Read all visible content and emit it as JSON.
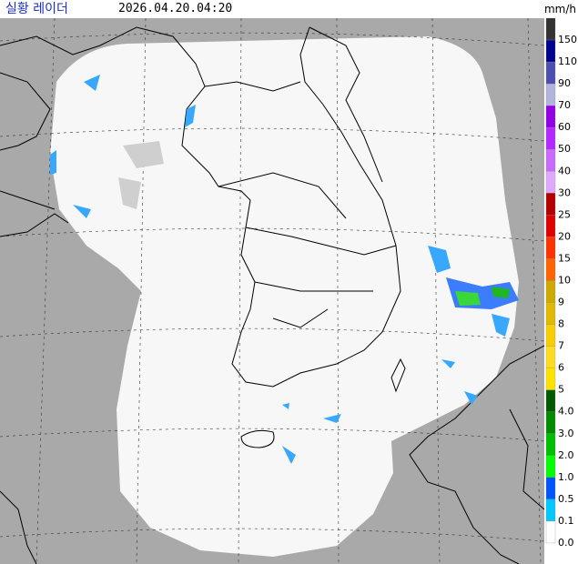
{
  "header": {
    "title": "실황 레이더",
    "time": "2026.04.20.04:20"
  },
  "legend": {
    "unit": "mm/h",
    "levels": [
      {
        "label": "150",
        "color": "#333333"
      },
      {
        "label": "110",
        "color": "#000390"
      },
      {
        "label": "90",
        "color": "#4c4eb1"
      },
      {
        "label": "70",
        "color": "#b3b4de"
      },
      {
        "label": "60",
        "color": "#9300e4"
      },
      {
        "label": "50",
        "color": "#b329ff"
      },
      {
        "label": "40",
        "color": "#c969ff"
      },
      {
        "label": "30",
        "color": "#e0a9ff"
      },
      {
        "label": "25",
        "color": "#b40000"
      },
      {
        "label": "20",
        "color": "#e00000"
      },
      {
        "label": "15",
        "color": "#ff3200"
      },
      {
        "label": "10",
        "color": "#ff6400"
      },
      {
        "label": "9",
        "color": "#ccaa00"
      },
      {
        "label": "8",
        "color": "#e0b900"
      },
      {
        "label": "7",
        "color": "#f9cd00"
      },
      {
        "label": "6",
        "color": "#ffdc1f"
      },
      {
        "label": "5",
        "color": "#ffe100"
      },
      {
        "label": "4.0",
        "color": "#005a00"
      },
      {
        "label": "3.0",
        "color": "#008c00"
      },
      {
        "label": "2.0",
        "color": "#00be00"
      },
      {
        "label": "1.0",
        "color": "#00ff00"
      },
      {
        "label": "0.5",
        "color": "#0055ff"
      },
      {
        "label": "0.1",
        "color": "#00c8ff"
      },
      {
        "label": "0.0",
        "color": "#ffffff"
      }
    ]
  }
}
